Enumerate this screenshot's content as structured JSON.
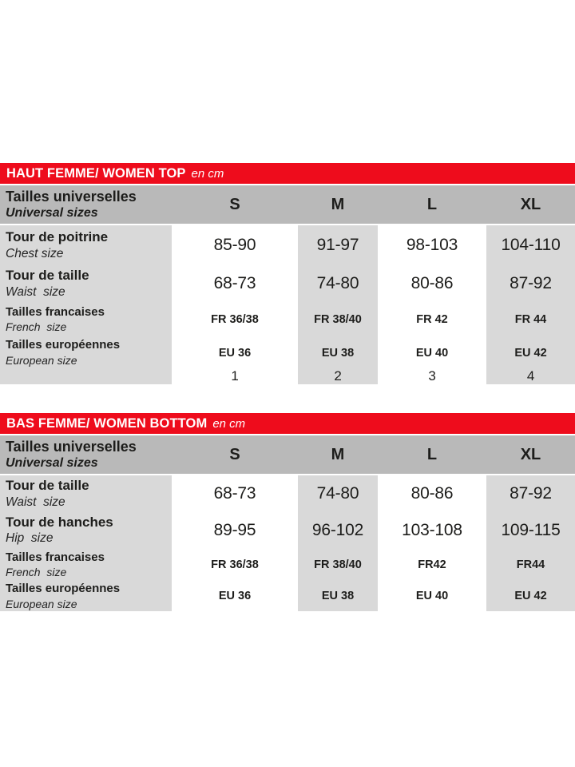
{
  "colors": {
    "bar_red": "#ee0c1c",
    "header_gray": "#b9b9b9",
    "cell_gray": "#d9d9d9",
    "text": "#1d1d1b",
    "bar_text": "#ffffff"
  },
  "tables": [
    {
      "bar": {
        "title": "HAUT FEMME/ WOMEN TOP",
        "unit": "en cm"
      },
      "header": {
        "label_fr": "Tailles universelles",
        "label_en": "Universal sizes",
        "columns": [
          "S",
          "M",
          "L",
          "XL"
        ]
      },
      "rows": [
        {
          "label_fr": "Tour de poitrine",
          "label_en": "Chest size",
          "size": "large",
          "values": [
            "85-90",
            "91-97",
            "98-103",
            "104-110"
          ]
        },
        {
          "label_fr": "Tour de taille",
          "label_en": "Waist  size",
          "size": "large",
          "values": [
            "68-73",
            "74-80",
            "80-86",
            "87-92"
          ]
        },
        {
          "label_fr": "Tailles francaises",
          "label_en": "French  size",
          "size": "small",
          "values": [
            "FR 36/38",
            "FR 38/40",
            "FR 42",
            "FR 44"
          ]
        },
        {
          "label_fr": "Tailles européennes",
          "label_en": "European size",
          "size": "small",
          "values": [
            "EU 36",
            "EU 38",
            "EU 40",
            "EU 42"
          ]
        },
        {
          "label_fr": "",
          "label_en": "",
          "size": "numbers",
          "values": [
            "1",
            "2",
            "3",
            "4"
          ]
        }
      ]
    },
    {
      "bar": {
        "title": "BAS FEMME/ WOMEN BOTTOM",
        "unit": "en cm"
      },
      "header": {
        "label_fr": "Tailles universelles",
        "label_en": "Universal sizes",
        "columns": [
          "S",
          "M",
          "L",
          "XL"
        ]
      },
      "rows": [
        {
          "label_fr": "Tour de taille",
          "label_en": "Waist  size",
          "size": "large",
          "values": [
            "68-73",
            "74-80",
            "80-86",
            "87-92"
          ]
        },
        {
          "label_fr": "Tour de hanches",
          "label_en": "Hip  size",
          "size": "large",
          "values": [
            "89-95",
            "96-102",
            "103-108",
            "109-115"
          ]
        },
        {
          "label_fr": "Tailles francaises",
          "label_en": "French  size",
          "size": "small",
          "values": [
            "FR 36/38",
            "FR 38/40",
            "FR42",
            "FR44"
          ]
        },
        {
          "label_fr": "Tailles européennes",
          "label_en": "European size",
          "size": "small",
          "values": [
            "EU 36",
            "EU 38",
            "EU 40",
            "EU 42"
          ]
        }
      ]
    }
  ]
}
